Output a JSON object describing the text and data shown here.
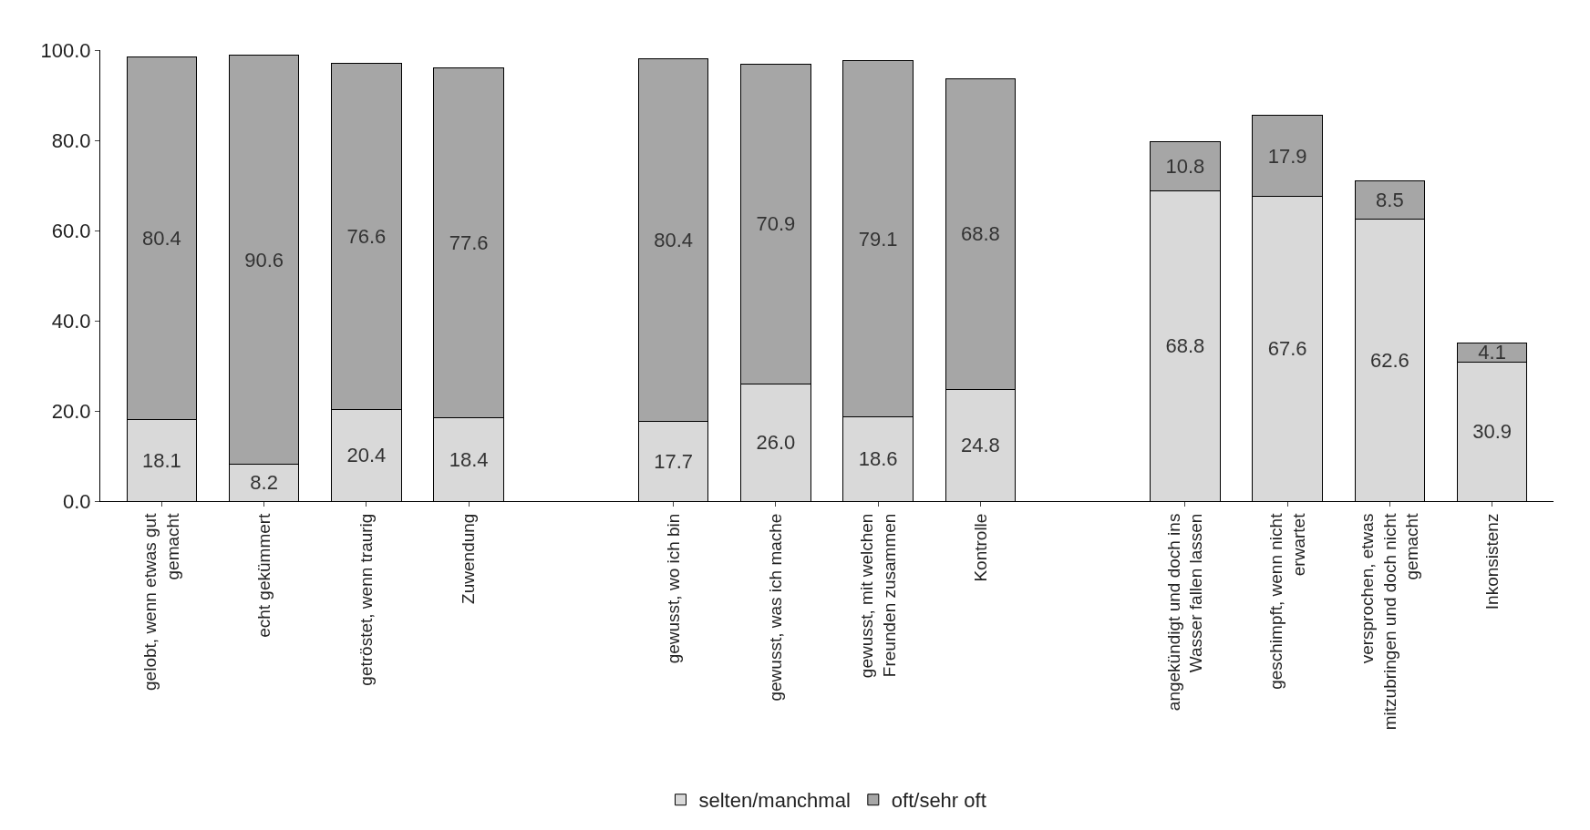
{
  "chart_data": {
    "type": "bar",
    "stacked": true,
    "categories": [
      "gelobt, wenn etwas gut gemacht",
      "echt gekümmert",
      "getröstet, wenn traurig",
      "Zuwendung",
      null,
      "gewusst, wo ich bin",
      "gewusst, was ich mache",
      "gewusst, mit welchen Freunden zusammen",
      "Kontrolle",
      null,
      "angekündigt und doch ins Wasser fallen lassen",
      "geschimpft, wenn nicht erwartet",
      "versprochen, etwas mitzubringen und doch nicht gemacht",
      "Inkonsistenz"
    ],
    "series": [
      {
        "name": "selten/manchmal",
        "color": "#d9d9d9",
        "values": [
          18.1,
          8.2,
          20.4,
          18.4,
          null,
          17.7,
          26.0,
          18.6,
          24.8,
          null,
          68.8,
          67.6,
          62.6,
          30.9
        ],
        "value_labels": [
          "18.1",
          "8.2",
          "20.4",
          "18.4",
          null,
          "17.7",
          "26.0",
          "18.6",
          "24.8",
          null,
          "68.8",
          "67.6",
          "62.6",
          "30.9"
        ]
      },
      {
        "name": "oft/sehr oft",
        "color": "#a6a6a6",
        "values": [
          80.4,
          90.6,
          76.6,
          77.6,
          null,
          80.4,
          70.9,
          79.1,
          68.8,
          null,
          10.8,
          17.9,
          8.5,
          4.1
        ],
        "value_labels": [
          "80.4",
          "90.6",
          "76.6",
          "77.6",
          null,
          "80.4",
          "70.9",
          "79.1",
          "68.8",
          null,
          "10.8",
          "17.9",
          "8.5",
          "4.1"
        ]
      }
    ],
    "ylim": [
      0,
      100
    ],
    "yticks": [
      {
        "value": 0,
        "label": "0.0"
      },
      {
        "value": 20,
        "label": "20.0"
      },
      {
        "value": 40,
        "label": "40.0"
      },
      {
        "value": 60,
        "label": "60.0"
      },
      {
        "value": 80,
        "label": "80.0"
      },
      {
        "value": 100,
        "label": "100.0"
      }
    ],
    "legend": "bottom"
  }
}
